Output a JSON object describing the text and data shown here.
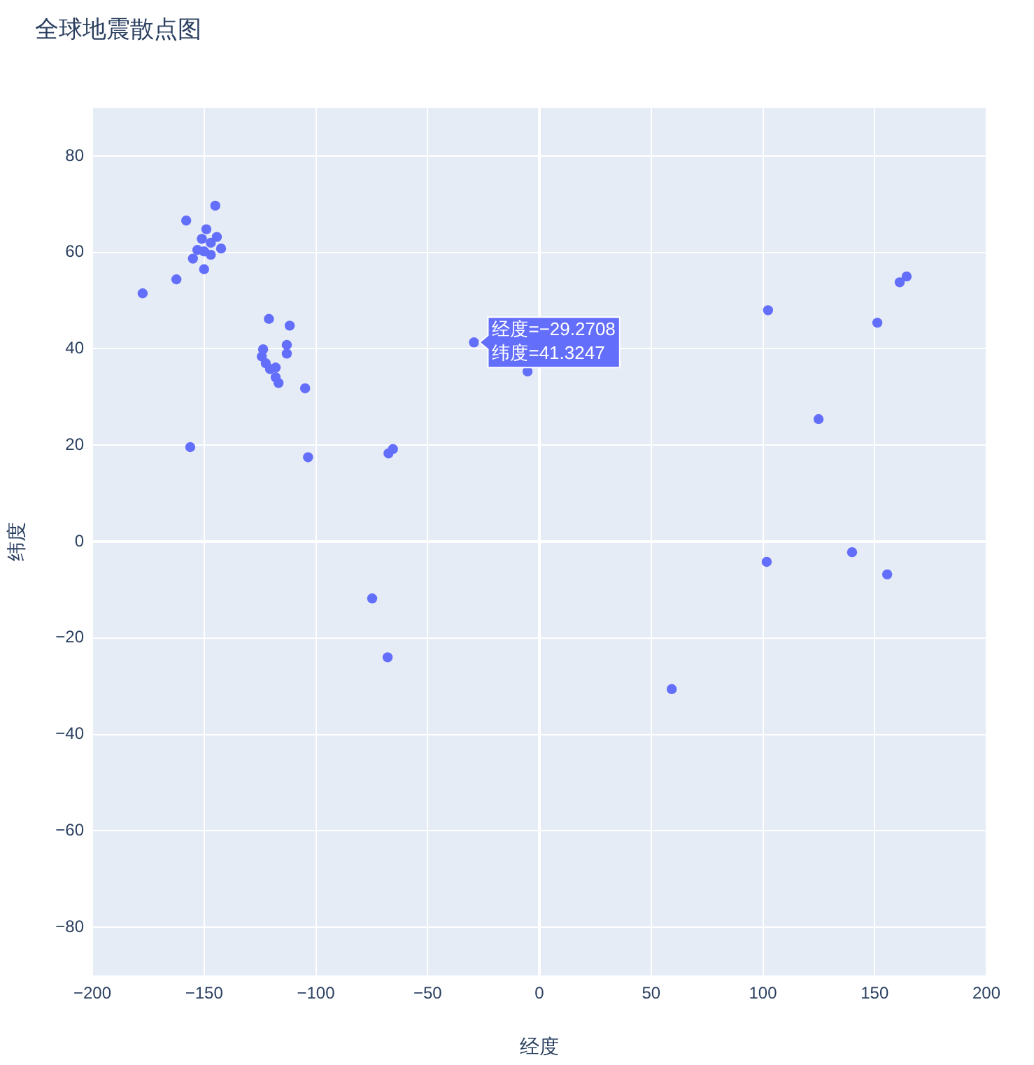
{
  "chart_data": {
    "type": "scatter",
    "title": "全球地震散点图",
    "xlabel": "经度",
    "ylabel": "纬度",
    "x": [
      -177.5,
      -162.4,
      -158,
      -145,
      -150,
      -142.4,
      -144.3,
      -155,
      -153,
      -151,
      -149,
      -147,
      -147,
      -150,
      -121,
      -111.7,
      -113,
      -113,
      -123.6,
      -124.2,
      -122.4,
      -120.5,
      -118,
      -116.7,
      -118,
      -104.8,
      -103.5,
      -156.2,
      -67.5,
      -65.5,
      -74.8,
      -67.9,
      -29.2708,
      -5.3,
      102.3,
      151.2,
      161.2,
      164.3,
      124.9,
      101.7,
      139.9,
      155.6,
      59.2
    ],
    "series": [
      {
        "color": "#636efa",
        "values": [
          51.5,
          54.4,
          66.6,
          69.7,
          56.5,
          60.8,
          63.2,
          58.7,
          60.5,
          62.8,
          64.8,
          62,
          59.5,
          60.2,
          46.2,
          44.8,
          40.8,
          39,
          39.9,
          38.4,
          37,
          35.8,
          34.1,
          32.9,
          36.1,
          31.8,
          17.5,
          19.6,
          18.3,
          19.2,
          -11.8,
          -24,
          41.3247,
          35.3,
          48,
          45.4,
          53.8,
          55,
          25.4,
          -4.2,
          -2.2,
          -6.8,
          -30.6
        ]
      }
    ],
    "xlim": [
      -200,
      200
    ],
    "ylim": [
      -90,
      90
    ],
    "xticks": [
      -200,
      -150,
      -100,
      -50,
      0,
      50,
      100,
      150,
      200
    ],
    "yticks": [
      -80,
      -60,
      -40,
      -20,
      0,
      20,
      40,
      60,
      80
    ],
    "grid": true,
    "marker": "circle",
    "legend": false,
    "annotations": [
      {
        "text": "经度=−29.2708\n纬度=41.3247",
        "x": -29.2708,
        "y": 41.3247
      }
    ]
  }
}
